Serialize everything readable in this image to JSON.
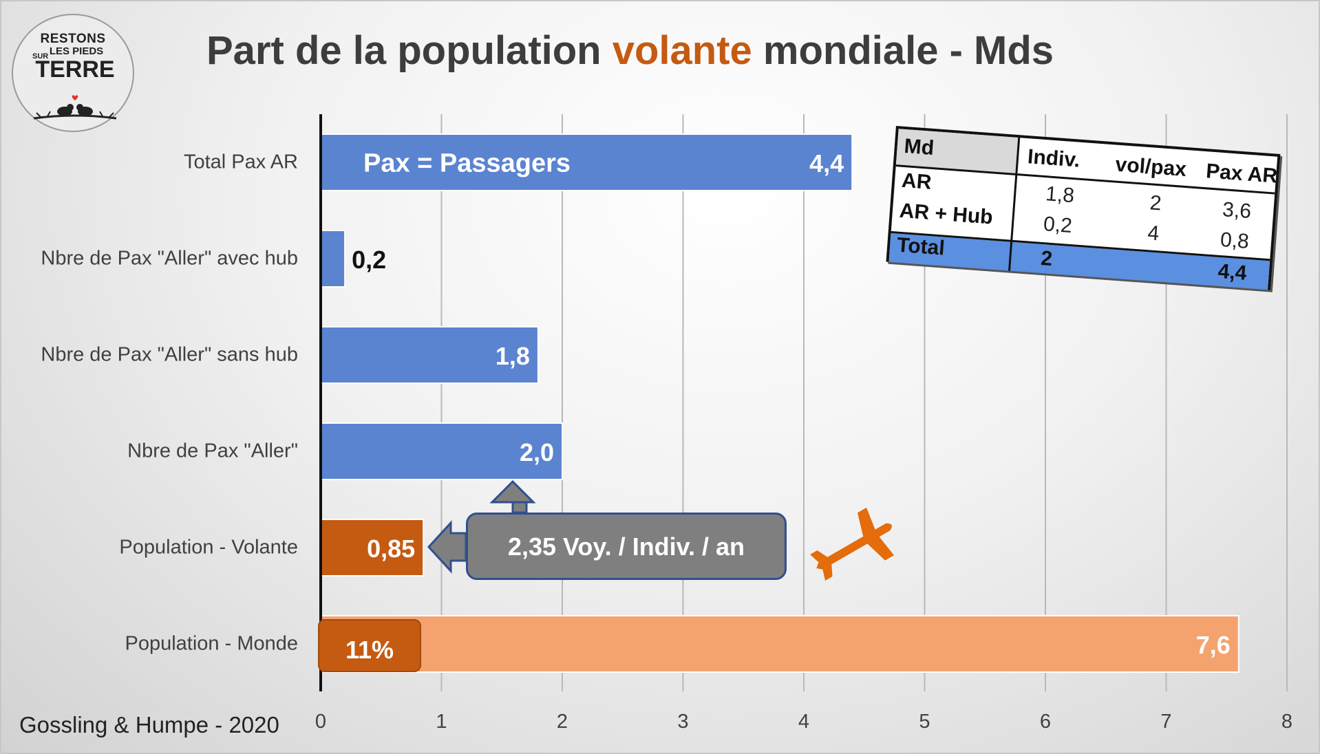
{
  "logo": {
    "line1": "RESTONS",
    "line2": "LES PIEDS",
    "line3": "SUR",
    "line4": "TERRE"
  },
  "title": {
    "before": "Part de la population ",
    "accent": "volante",
    "after": " mondiale - Mds"
  },
  "colors": {
    "blue_bar": "#5b84d0",
    "orange_dark": "#c55a11",
    "orange_light": "#f4a36e",
    "title_accent": "#c55a11",
    "callout": "#7f7f7f"
  },
  "chart_data": {
    "type": "bar",
    "orientation": "horizontal",
    "categories": [
      "Total Pax AR",
      "Nbre de Pax \"Aller\" avec hub",
      "Nbre de Pax \"Aller\" sans hub",
      "Nbre de Pax \"Aller\"",
      "Population - Volante",
      "Population - Monde"
    ],
    "values": [
      4.4,
      0.2,
      1.8,
      2.0,
      0.85,
      7.6
    ],
    "data_labels": [
      "4,4",
      "0,2",
      "1,8",
      "2,0",
      "0,85",
      "7,6"
    ],
    "bar_colors": [
      "#5b84d0",
      "#5b84d0",
      "#5b84d0",
      "#5b84d0",
      "#c55a11",
      "#f4a36e"
    ],
    "xlim": [
      0,
      8
    ],
    "x_ticks": [
      "0",
      "1",
      "2",
      "3",
      "4",
      "5",
      "6",
      "7",
      "8"
    ],
    "grid": "vertical",
    "annotations": {
      "pax_note": "Pax = Passagers",
      "share": "11%",
      "callout": "2,35 Voy. / Indiv. / an"
    }
  },
  "source": "Gossling & Humpe - 2020",
  "table": {
    "header": [
      "Md",
      "Indiv.",
      "vol/pax",
      "Pax AR"
    ],
    "rows": [
      [
        "AR",
        "1,8",
        "2",
        "3,6"
      ],
      [
        "AR + Hub",
        "0,2",
        "4",
        "0,8"
      ],
      [
        "Total",
        "2",
        "",
        "4,4"
      ]
    ]
  }
}
